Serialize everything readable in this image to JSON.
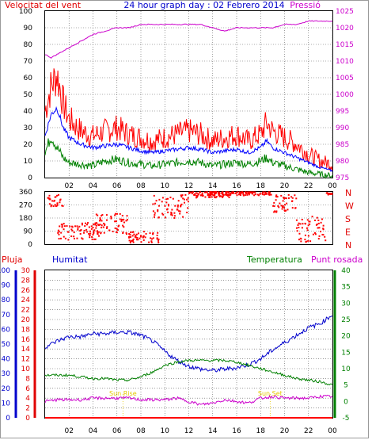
{
  "header": {
    "title": "24 hour graph day : 02 Febrero 2014",
    "left_label": "Velocitat del vent",
    "right_label": "Pressió"
  },
  "colors": {
    "wind": "#ff0000",
    "gust_avg": "#0000ff",
    "wind_min": "#008000",
    "pressure": "#cc00cc",
    "rain": "#ff0000",
    "humidity": "#0000cc",
    "temperature": "#008000",
    "dewpoint": "#cc00cc",
    "sun_marker": "#e6c800",
    "grid": "#5a5a5a"
  },
  "x_ticks": [
    "02",
    "04",
    "06",
    "08",
    "10",
    "12",
    "14",
    "16",
    "18",
    "20",
    "22",
    "00"
  ],
  "chart_data": [
    {
      "type": "line",
      "name": "wind-pressure",
      "ylim_left": [
        0,
        100
      ],
      "yticks_left": [
        0,
        10,
        20,
        30,
        40,
        50,
        60,
        70,
        80,
        90,
        100
      ],
      "ylim_right": [
        975,
        1025
      ],
      "yticks_right": [
        975,
        980,
        985,
        990,
        995,
        1000,
        1005,
        1010,
        1015,
        1020,
        1025
      ],
      "x_hours": [
        0,
        0.5,
        1,
        1.5,
        2,
        3,
        4,
        5,
        6,
        7,
        8,
        9,
        10,
        11,
        12,
        13,
        14,
        15,
        16,
        17,
        18,
        18.5,
        19,
        20,
        21,
        22,
        23,
        24
      ],
      "series": [
        {
          "key": "wind",
          "values": [
            40,
            55,
            62,
            45,
            35,
            28,
            25,
            28,
            30,
            26,
            24,
            22,
            24,
            26,
            28,
            26,
            22,
            24,
            26,
            22,
            26,
            33,
            28,
            24,
            20,
            14,
            10,
            8
          ]
        },
        {
          "key": "avg",
          "values": [
            25,
            38,
            42,
            30,
            24,
            20,
            18,
            19,
            20,
            18,
            16,
            15,
            16,
            17,
            18,
            17,
            15,
            16,
            17,
            15,
            18,
            22,
            18,
            15,
            12,
            9,
            6,
            4
          ]
        },
        {
          "key": "min",
          "values": [
            15,
            25,
            18,
            12,
            9,
            8,
            7,
            10,
            11,
            9,
            8,
            7,
            8,
            9,
            10,
            9,
            7,
            8,
            9,
            8,
            10,
            12,
            9,
            7,
            5,
            3,
            2,
            1
          ]
        },
        {
          "key": "pressure",
          "y_axis": "right",
          "values": [
            1012,
            1011,
            1012,
            1013,
            1014,
            1016,
            1018,
            1019,
            1020,
            1020,
            1021,
            1021,
            1021,
            1021,
            1021,
            1021,
            1020,
            1019,
            1020,
            1020,
            1020,
            1020,
            1020,
            1021,
            1021,
            1022,
            1022,
            1022
          ]
        }
      ]
    },
    {
      "type": "scatter",
      "name": "wind-direction",
      "ylim": [
        0,
        360
      ],
      "yticks": [
        0,
        90,
        180,
        270,
        360
      ],
      "compass_labels": [
        "N",
        "W",
        "S",
        "E",
        "N"
      ],
      "segments": [
        {
          "from": 0.2,
          "to": 1.5,
          "center": 300,
          "spread": 40
        },
        {
          "from": 1.0,
          "to": 4.5,
          "center": 90,
          "spread": 60
        },
        {
          "from": 4.0,
          "to": 7.0,
          "center": 140,
          "spread": 70
        },
        {
          "from": 7.0,
          "to": 9.5,
          "center": 50,
          "spread": 40
        },
        {
          "from": 9.0,
          "to": 12.0,
          "center": 260,
          "spread": 80
        },
        {
          "from": 12.0,
          "to": 15.5,
          "center": 340,
          "spread": 20
        },
        {
          "from": 13.5,
          "to": 19.0,
          "center": 350,
          "spread": 15
        },
        {
          "from": 19.0,
          "to": 21.0,
          "center": 280,
          "spread": 60
        },
        {
          "from": 21.0,
          "to": 23.5,
          "center": 100,
          "spread": 90
        },
        {
          "from": 23.5,
          "to": 24.0,
          "center": 350,
          "spread": 10
        }
      ]
    },
    {
      "type": "line",
      "name": "rain-humidity-temperature",
      "labels": {
        "rain": "Pluja",
        "humidity": "Humitat",
        "temperature": "Temperatura",
        "dewpoint": "Punt rosada"
      },
      "ylim_left": [
        0,
        100
      ],
      "yticks_left": [
        0,
        10,
        20,
        30,
        40,
        50,
        60,
        70,
        80,
        90,
        100
      ],
      "ylim_rain": [
        0,
        30
      ],
      "yticks_rain": [
        0,
        2,
        4,
        6,
        8,
        10,
        12,
        14,
        16,
        18,
        20,
        22,
        24,
        26,
        28,
        30
      ],
      "ylim_right": [
        -5,
        40
      ],
      "yticks_right": [
        -5,
        0,
        5,
        10,
        15,
        20,
        25,
        30,
        35,
        40
      ],
      "x_hours": [
        0,
        1,
        2,
        3,
        4,
        5,
        6,
        7,
        8,
        9,
        10,
        11,
        12,
        13,
        14,
        15,
        16,
        17,
        18,
        19,
        20,
        21,
        22,
        23,
        24
      ],
      "series": [
        {
          "key": "humidity",
          "values": [
            48,
            52,
            55,
            55,
            57,
            57,
            58,
            58,
            56,
            52,
            45,
            39,
            35,
            33,
            32,
            33,
            34,
            36,
            40,
            46,
            51,
            56,
            61,
            64,
            70
          ]
        },
        {
          "key": "temperature",
          "values": [
            8,
            8,
            8,
            7.5,
            7,
            7,
            6.5,
            6.5,
            7.5,
            9,
            11,
            12,
            12.5,
            12.5,
            12.5,
            12.5,
            12,
            11,
            10,
            9,
            8,
            7,
            6.5,
            6,
            5
          ]
        },
        {
          "key": "dewpoint",
          "values": [
            0,
            0.5,
            0.5,
            0.5,
            1,
            1,
            1,
            1,
            0.5,
            0.5,
            0.5,
            1,
            0,
            -1,
            -0.5,
            0.5,
            0,
            -0.5,
            1,
            1.5,
            1,
            1,
            1,
            1.5,
            1.5
          ]
        },
        {
          "key": "rain",
          "values": [
            0,
            0,
            0,
            0,
            0,
            0,
            0,
            0,
            0,
            0,
            0,
            0,
            0,
            0,
            0,
            0,
            0,
            0,
            0,
            0,
            0,
            0,
            0,
            0,
            0
          ]
        }
      ],
      "annotations": [
        {
          "label": "Sun Rise",
          "hour": 6.5
        },
        {
          "label": "Sun Set",
          "hour": 18.8
        }
      ]
    }
  ]
}
